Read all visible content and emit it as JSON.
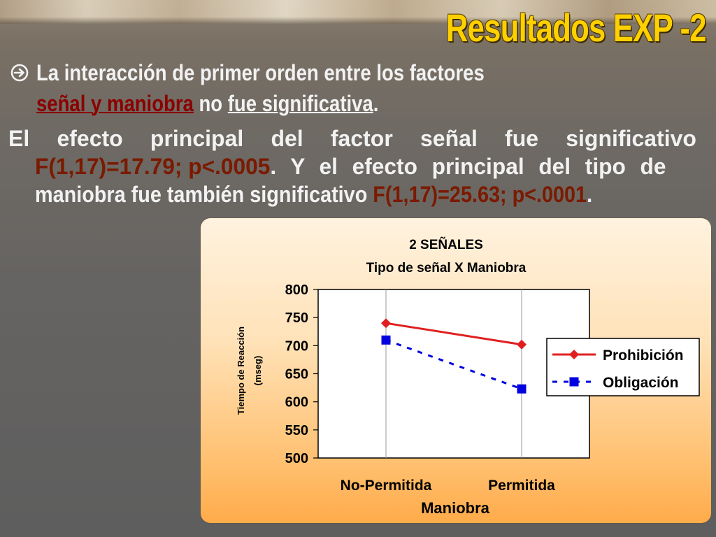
{
  "slide": {
    "title": "Resultados EXP -2",
    "bullet": {
      "icon": "circled-arrow-right-icon",
      "line1": "La interacción de primer orden entre los factores",
      "line2_a": "señal y maniobra",
      "line2_b": " no ",
      "line2_c": "fue significativa",
      "line2_d": "."
    },
    "paragraph": {
      "words_line1": [
        "El",
        "efecto",
        "principal",
        "del",
        "factor",
        "señal",
        "fue",
        "significativo"
      ],
      "line2_stat": "F(1,17)=17.79;  p<.0005",
      "line2_rest": ".   Y el efecto principal del tipo de",
      "line3_a": "maniobra fue también significativo ",
      "line3_stat": "F(1,17)=25.63; p<.0001",
      "line3_b": "."
    }
  },
  "chart_data": {
    "type": "line",
    "title": "2 SEÑALES",
    "subtitle": "Tipo de señal X Maniobra",
    "xlabel": "Maniobra",
    "ylabel_line1": "Tiempo de Reacción",
    "ylabel_line2": "(mseg)",
    "categories": [
      "No-Permitida",
      "Permitida"
    ],
    "ylim": [
      500,
      800
    ],
    "yticks": [
      500,
      550,
      600,
      650,
      700,
      750,
      800
    ],
    "grid": "vertical",
    "legend_position": "right",
    "series": [
      {
        "name": "Prohibición",
        "values": [
          740,
          702
        ],
        "color": "#e02020",
        "marker": "diamond",
        "dash": "solid"
      },
      {
        "name": "Obligación",
        "values": [
          710,
          623
        ],
        "color": "#0000e0",
        "marker": "square",
        "dash": "dotted"
      }
    ]
  }
}
